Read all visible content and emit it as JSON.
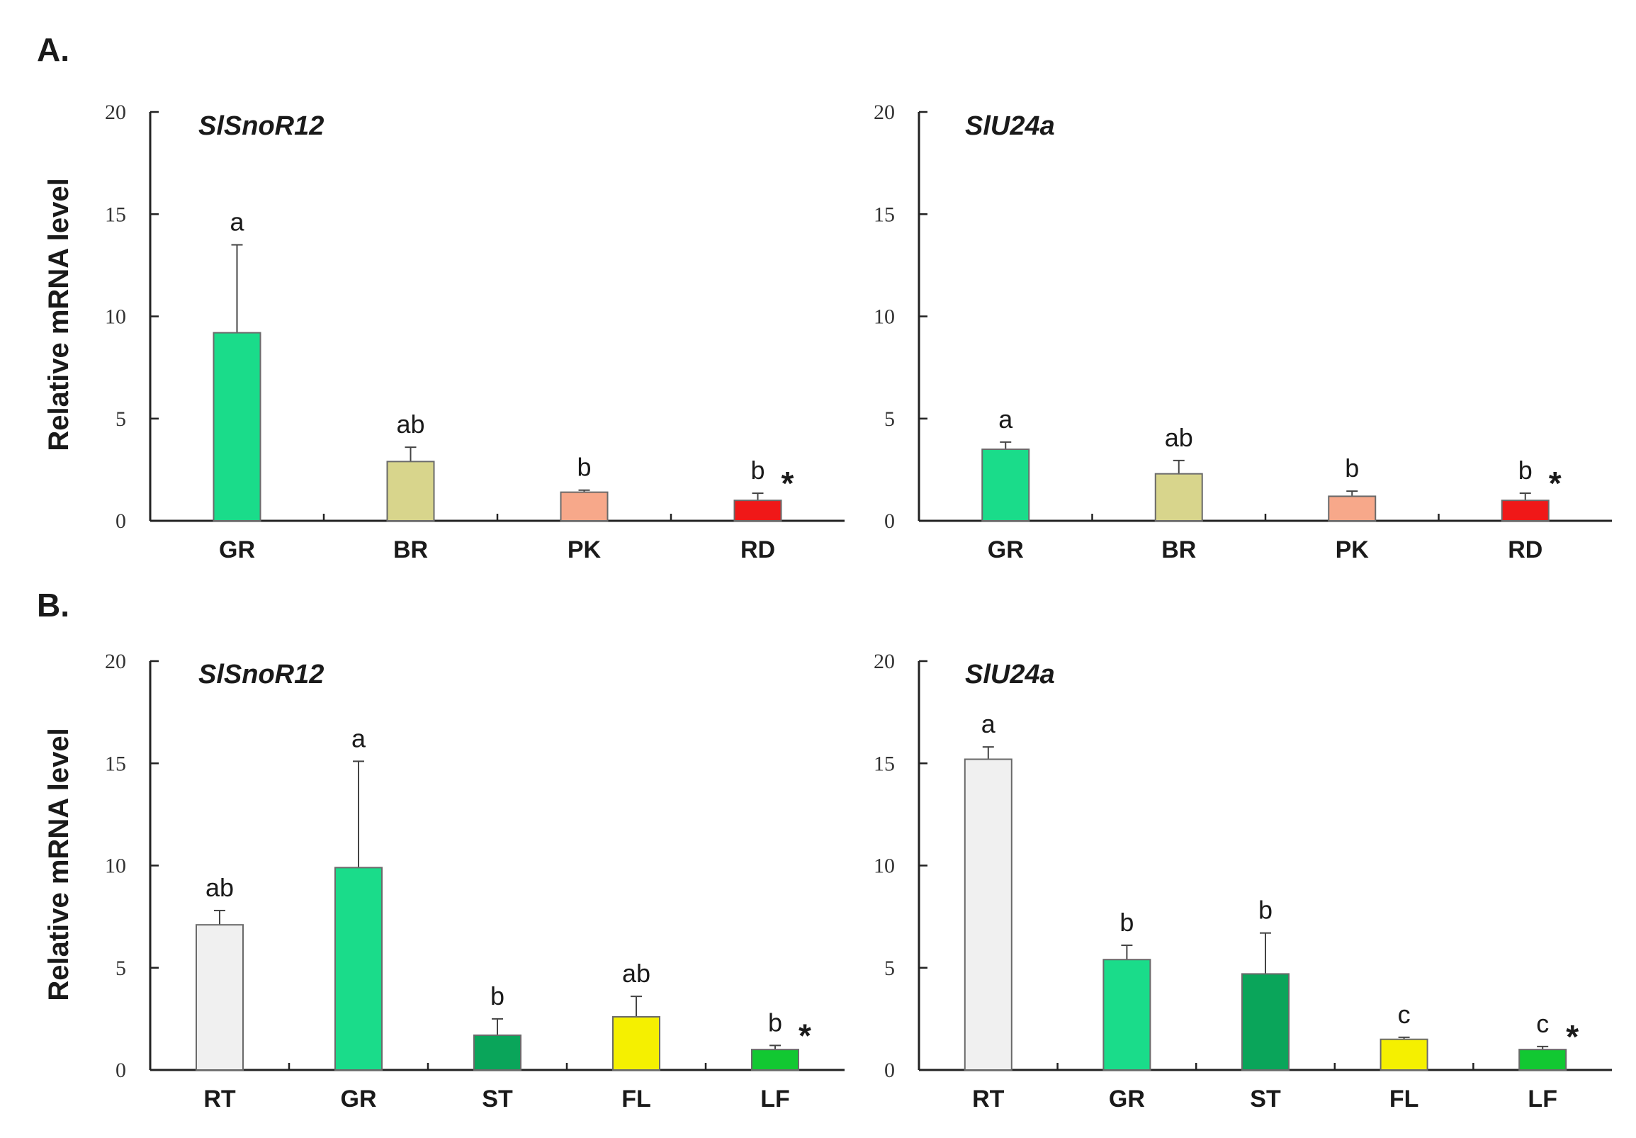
{
  "panels": [
    {
      "label": "A.",
      "ylabel": "Relative mRNA level"
    },
    {
      "label": "B.",
      "ylabel": "Relative mRNA level"
    }
  ],
  "chart_data": [
    {
      "type": "bar",
      "panel": "A.",
      "title": "SlSnoR12",
      "xlabel": "",
      "ylabel": "Relative mRNA level",
      "ylim": [
        0,
        20
      ],
      "yticks": [
        0,
        5,
        10,
        15,
        20
      ],
      "categories": [
        "GR",
        "BR",
        "PK",
        "RD"
      ],
      "values": [
        9.2,
        2.9,
        1.4,
        1.0
      ],
      "errors": [
        4.3,
        0.7,
        0.1,
        0.35
      ],
      "significance": [
        "a",
        "ab",
        "b",
        "b"
      ],
      "colors": [
        "#1adc8a",
        "#d8d58c",
        "#f7a88a",
        "#f01818"
      ],
      "reference_marker": "*",
      "reference_index": 3
    },
    {
      "type": "bar",
      "panel": "A.",
      "title": "SlU24a",
      "xlabel": "",
      "ylabel": "Relative mRNA level",
      "ylim": [
        0,
        20
      ],
      "yticks": [
        0,
        5,
        10,
        15,
        20
      ],
      "categories": [
        "GR",
        "BR",
        "PK",
        "RD"
      ],
      "values": [
        3.5,
        2.3,
        1.2,
        1.0
      ],
      "errors": [
        0.35,
        0.65,
        0.25,
        0.35
      ],
      "significance": [
        "a",
        "ab",
        "b",
        "b"
      ],
      "colors": [
        "#1adc8a",
        "#d8d58c",
        "#f7a88a",
        "#f01818"
      ],
      "reference_marker": "*",
      "reference_index": 3
    },
    {
      "type": "bar",
      "panel": "B.",
      "title": "SlSnoR12",
      "xlabel": "",
      "ylabel": "Relative mRNA level",
      "ylim": [
        0,
        20
      ],
      "yticks": [
        0,
        5,
        10,
        15,
        20
      ],
      "categories": [
        "RT",
        "GR",
        "ST",
        "FL",
        "LF"
      ],
      "values": [
        7.1,
        9.9,
        1.7,
        2.6,
        1.0
      ],
      "errors": [
        0.7,
        5.2,
        0.8,
        1.0,
        0.2
      ],
      "significance": [
        "ab",
        "a",
        "b",
        "ab",
        "b"
      ],
      "colors": [
        "#f0f0f0",
        "#1adc8a",
        "#0aa55a",
        "#f5f000",
        "#12c832"
      ],
      "reference_marker": "*",
      "reference_index": 4
    },
    {
      "type": "bar",
      "panel": "B.",
      "title": "SlU24a",
      "xlabel": "",
      "ylabel": "Relative mRNA level",
      "ylim": [
        0,
        20
      ],
      "yticks": [
        0,
        5,
        10,
        15,
        20
      ],
      "categories": [
        "RT",
        "GR",
        "ST",
        "FL",
        "LF"
      ],
      "values": [
        15.2,
        5.4,
        4.7,
        1.5,
        1.0
      ],
      "errors": [
        0.6,
        0.7,
        2.0,
        0.1,
        0.15
      ],
      "significance": [
        "a",
        "b",
        "b",
        "c",
        "c"
      ],
      "colors": [
        "#f0f0f0",
        "#1adc8a",
        "#0aa55a",
        "#f5f000",
        "#12c832"
      ],
      "reference_marker": "*",
      "reference_index": 4
    }
  ]
}
